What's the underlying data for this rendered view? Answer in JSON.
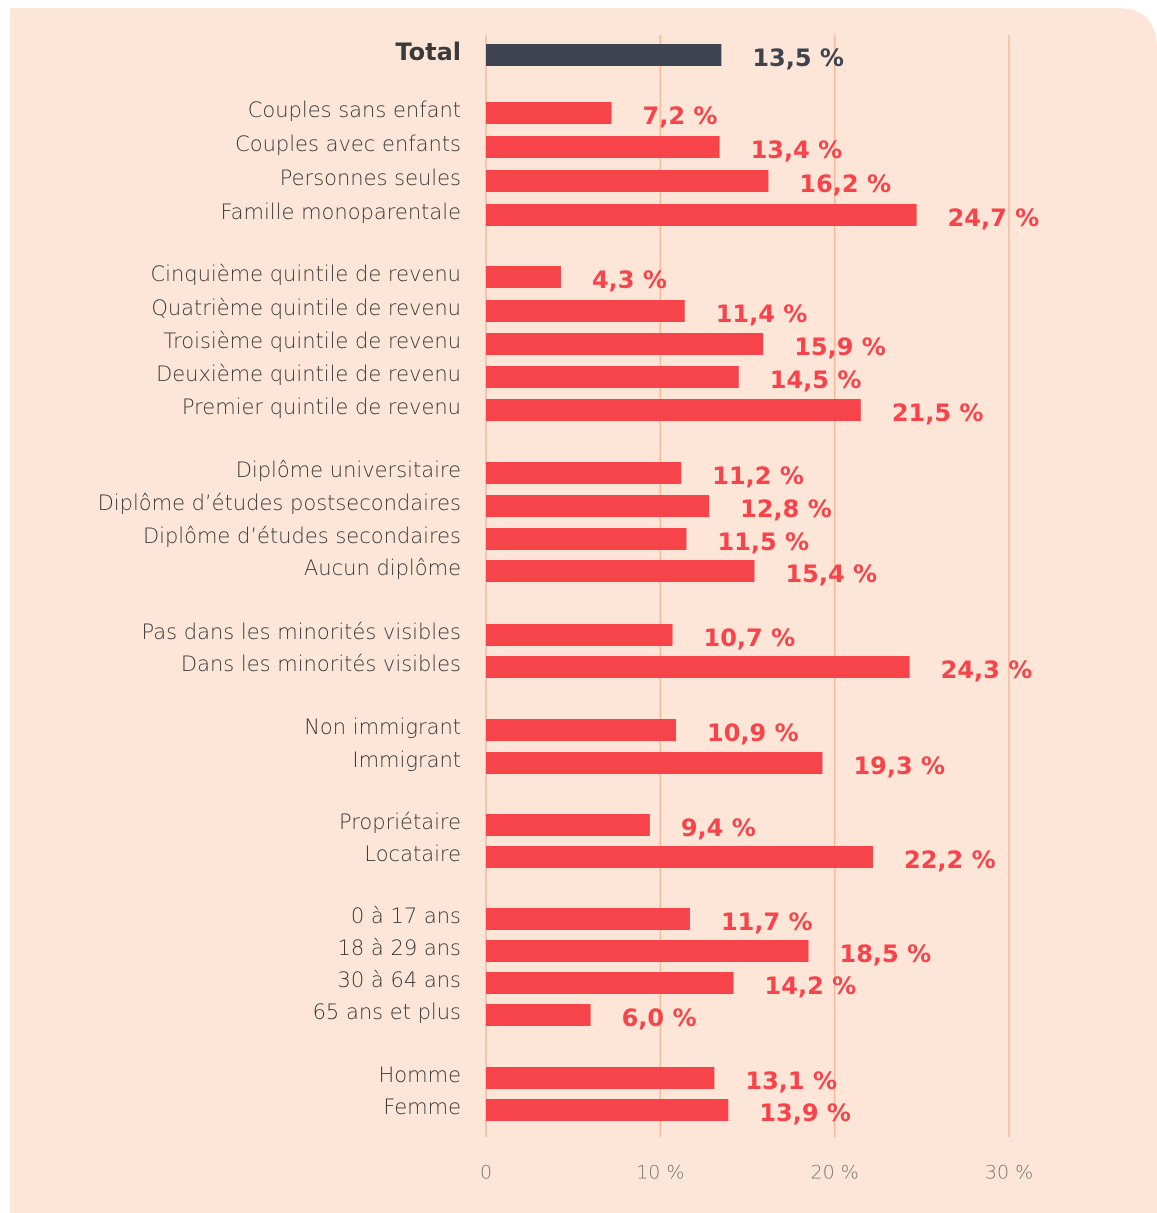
{
  "chart_data": {
    "type": "bar",
    "orientation": "horizontal",
    "categories": [
      "Total",
      "Couples sans enfant",
      "Couples avec enfants",
      "Personnes seules",
      "Famille monoparentale",
      "Cinquième quintile de revenu",
      "Quatrième quintile de revenu",
      "Troisième quintile de revenu",
      "Deuxième quintile de revenu",
      "Premier quintile de revenu",
      "Diplôme universitaire",
      "Diplôme d’études postsecondaires",
      "Diplôme d’études secondaires",
      "Aucun diplôme",
      "Pas dans les minorités visibles",
      "Dans les minorités visibles",
      "Non immigrant",
      "Immigrant",
      "Propriétaire",
      "Locataire",
      "0 à 17 ans",
      "18 à 29 ans",
      "30 à 64 ans",
      "65 ans et plus",
      "Homme",
      "Femme"
    ],
    "values": [
      13.5,
      7.2,
      13.4,
      16.2,
      24.7,
      4.3,
      11.4,
      15.9,
      14.5,
      21.5,
      11.2,
      12.8,
      11.5,
      15.4,
      10.7,
      24.3,
      10.9,
      19.3,
      9.4,
      22.2,
      11.7,
      18.5,
      14.2,
      6.0,
      13.1,
      13.9
    ],
    "value_labels": [
      "13,5 %",
      "7,2 %",
      "13,4 %",
      "16,2 %",
      "24,7 %",
      "4,3 %",
      "11,4 %",
      "15,9 %",
      "14,5 %",
      "21,5 %",
      "11,2 %",
      "12,8 %",
      "11,5 %",
      "15,4 %",
      "10,7 %",
      "24,3 %",
      "10,9 %",
      "19,3 %",
      "9,4 %",
      "22,2 %",
      "11,7 %",
      "18,5 %",
      "14,2 %",
      "6,0 %",
      "13,1 %",
      "13,9 %"
    ],
    "colors": [
      "#3d4450",
      "#f7434a",
      "#f7434a",
      "#f7434a",
      "#f7434a",
      "#f7434a",
      "#f7434a",
      "#f7434a",
      "#f7434a",
      "#f7434a",
      "#f7434a",
      "#f7434a",
      "#f7434a",
      "#f7434a",
      "#f7434a",
      "#f7434a",
      "#f7434a",
      "#f7434a",
      "#f7434a",
      "#f7434a",
      "#f7434a",
      "#f7434a",
      "#f7434a",
      "#f7434a",
      "#f7434a",
      "#f7434a"
    ],
    "xlim": [
      0,
      30
    ],
    "xticks": [
      0,
      {
        "value": 10,
        "label": "10 %"
      },
      {
        "value": 20,
        "label": "20 %"
      },
      {
        "value": 30,
        "label": "30 %"
      }
    ],
    "grid": true
  }
}
